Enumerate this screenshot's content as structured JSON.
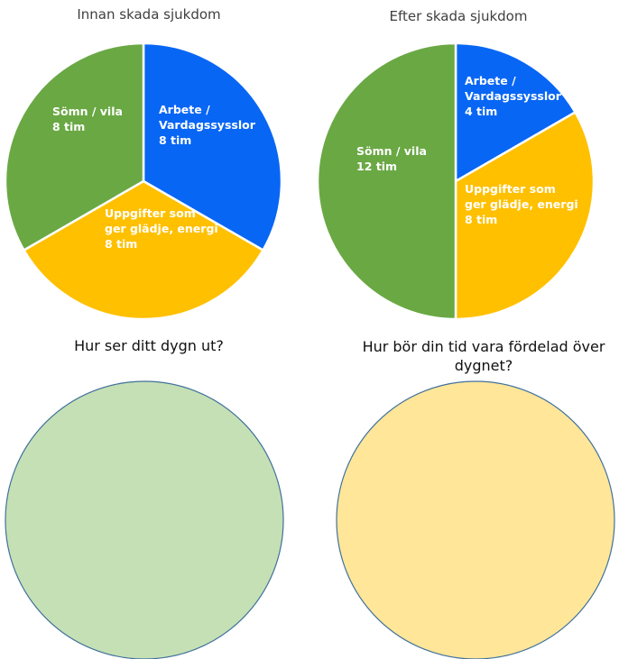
{
  "chart_data": [
    {
      "type": "pie",
      "title": "Innan skada sjukdom",
      "unit": "tim",
      "slices": [
        {
          "label_lines": [
            "Arbete /",
            "Vardagssysslor",
            "8 tim"
          ],
          "value": 8,
          "color": "#0866F5",
          "text_color": "#FFFFFF"
        },
        {
          "label_lines": [
            "Uppgifter som",
            "ger glädje, energi",
            "8 tim"
          ],
          "value": 8,
          "color": "#FFC000",
          "text_color": "#FFFFFF"
        },
        {
          "label_lines": [
            "Sömn / vila",
            "8 tim"
          ],
          "value": 8,
          "color": "#6AA844",
          "text_color": "#FFFFFF"
        }
      ]
    },
    {
      "type": "pie",
      "title": "Efter skada sjukdom",
      "unit": "tim",
      "slices": [
        {
          "label_lines": [
            "Arbete /",
            "Vardagssysslor",
            "4 tim"
          ],
          "value": 4,
          "color": "#0866F5",
          "text_color": "#FFFFFF"
        },
        {
          "label_lines": [
            "Uppgifter som",
            "ger glädje, energi",
            "8 tim"
          ],
          "value": 8,
          "color": "#FFC000",
          "text_color": "#FFFFFF"
        },
        {
          "label_lines": [
            "Sömn / vila",
            "12 tim"
          ],
          "value": 12,
          "color": "#6AA844",
          "text_color": "#FFFFFF"
        }
      ]
    }
  ],
  "worksheet": {
    "question_left": "Hur ser ditt dygn ut?",
    "question_right": "Hur bör din tid vara fördelad över dygnet?",
    "circle_left_color": "#C5E0B4",
    "circle_right_color": "#FFE699",
    "circle_outline_color": "#41719C"
  },
  "separator_color": "#FFFFFF"
}
